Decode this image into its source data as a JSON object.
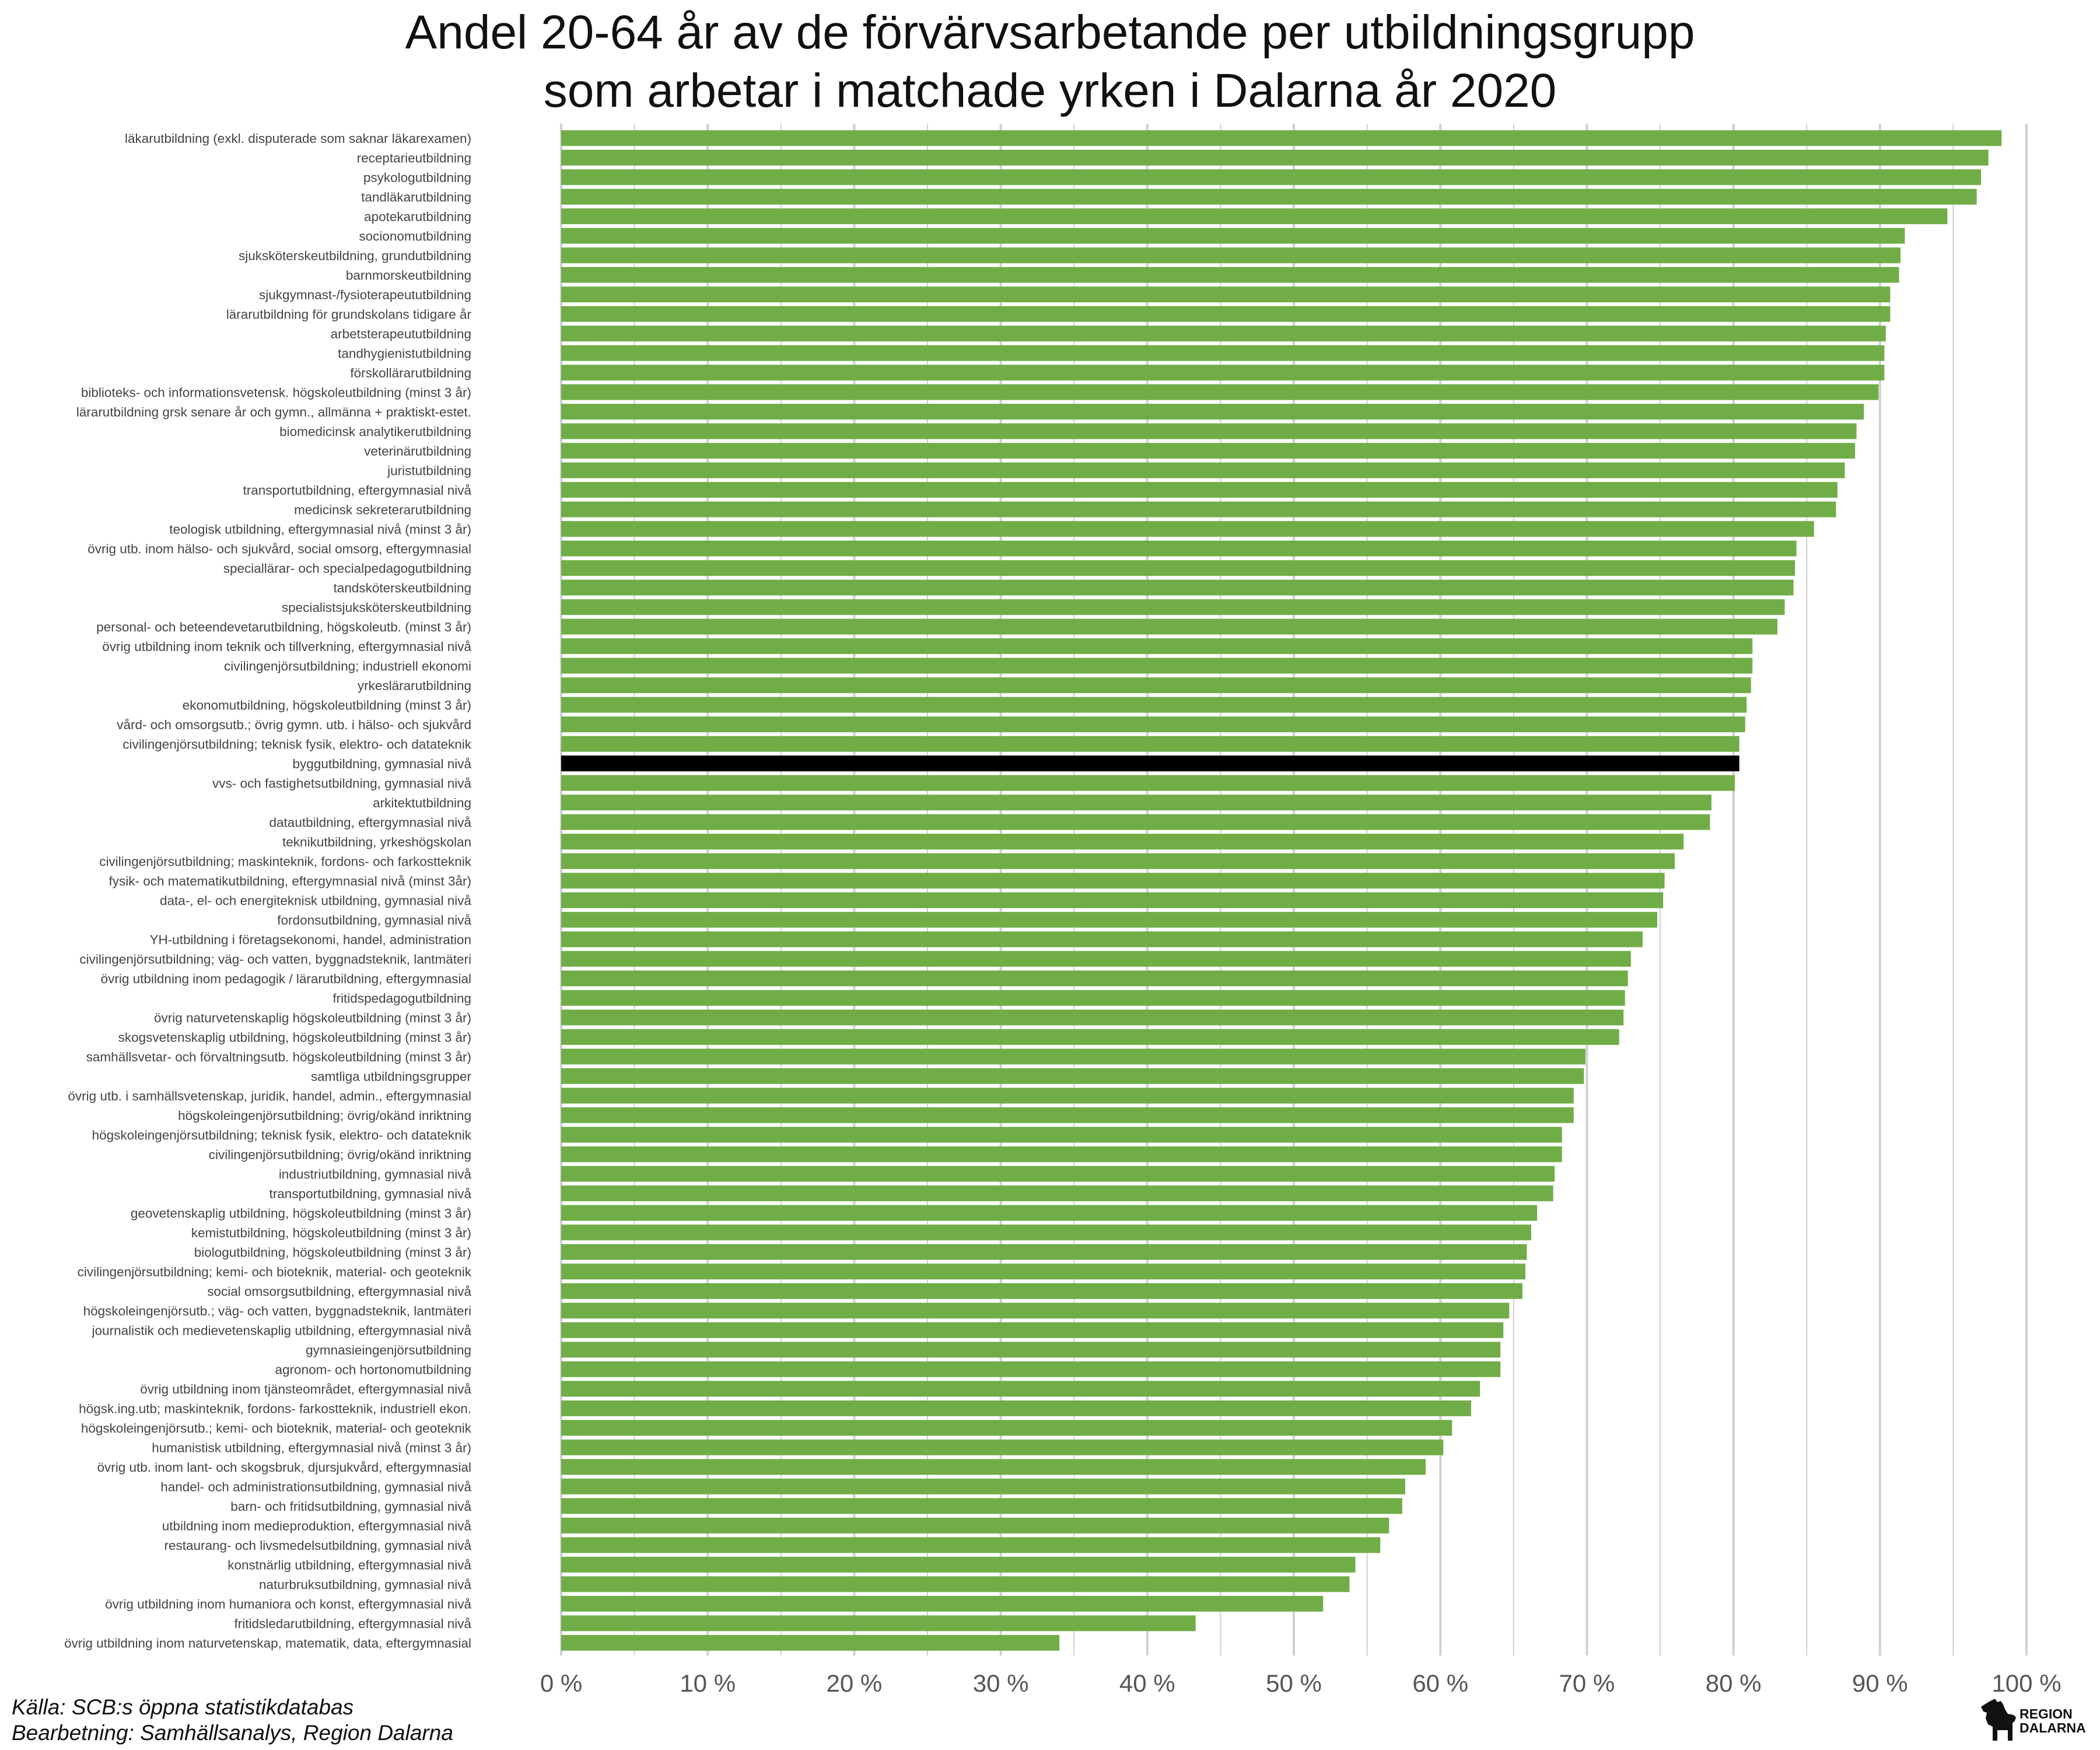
{
  "title": {
    "line1": "Andel 20-64 år av de förvärvsarbetande per utbildningsgrupp",
    "line2": "som arbetar i matchade yrken i Dalarna år 2020"
  },
  "footer": {
    "source": "Källa: SCB:s öppna statistikdatabas",
    "processing": "Bearbetning: Samhällsanalys, Region Dalarna"
  },
  "logo": {
    "line1": "REGION",
    "line2": "DALARNA",
    "icon": "dala-horse-icon"
  },
  "colors": {
    "bar": "#70ad47",
    "highlight": "#000000",
    "grid": "#d0d0d0"
  },
  "chart_data": {
    "type": "bar",
    "orientation": "horizontal",
    "xlim": [
      0,
      100
    ],
    "ticks": [
      "0 %",
      "10 %",
      "20 %",
      "30 %",
      "40 %",
      "50 %",
      "60 %",
      "70 %",
      "80 %",
      "90 %",
      "100 %"
    ],
    "grid": true,
    "highlight": "byggutbildning, gymnasial nivå",
    "categories": [
      "läkarutbildning (exkl. disputerade som saknar läkarexamen)",
      "receptarieutbildning",
      "psykologutbildning",
      "tandläkarutbildning",
      "apotekarutbildning",
      "socionomutbildning",
      "sjuksköterskeutbildning, grundutbildning",
      "barnmorskeutbildning",
      "sjukgymnast-/fysioterapeututbildning",
      "lärarutbildning för grundskolans tidigare år",
      "arbetsterapeututbildning",
      "tandhygienistutbildning",
      "förskollärarutbildning",
      "biblioteks- och informationsvetensk. högskoleutbildning (minst 3 år)",
      "lärarutbildning grsk senare år och gymn., allmänna + praktiskt-estet.",
      "biomedicinsk analytikerutbildning",
      "veterinärutbildning",
      "juristutbildning",
      "transportutbildning, eftergymnasial nivå",
      "medicinsk sekreterarutbildning",
      "teologisk utbildning, eftergymnasial nivå (minst 3 år)",
      "övrig utb. inom hälso- och sjukvård, social omsorg, eftergymnasial",
      "speciallärar- och specialpedagogutbildning",
      "tandsköterskeutbildning",
      "specialistsjuksköterskeutbildning",
      "personal- och beteendevetarutbildning, högskoleutb. (minst 3 år)",
      "övrig utbildning inom teknik och tillverkning, eftergymnasial nivå",
      "civilingenjörsutbildning; industriell ekonomi",
      "yrkeslärarutbildning",
      "ekonomutbildning, högskoleutbildning (minst 3 år)",
      "vård- och omsorgsutb.; övrig gymn. utb. i hälso- och sjukvård",
      "civilingenjörsutbildning; teknisk fysik, elektro- och datateknik",
      "byggutbildning, gymnasial nivå",
      "vvs- och fastighetsutbildning, gymnasial nivå",
      "arkitektutbildning",
      "datautbildning, eftergymnasial nivå",
      "teknikutbildning, yrkeshögskolan",
      "civilingenjörsutbildning; maskinteknik, fordons- och farkostteknik",
      "fysik- och  matematikutbildning, eftergymnasial nivå (minst 3år)",
      "data-, el- och energiteknisk utbildning, gymnasial nivå",
      "fordonsutbildning, gymnasial nivå",
      "YH-utbildning i företagsekonomi, handel, administration",
      "civilingenjörsutbildning; väg- och vatten, byggnadsteknik, lantmäteri",
      "övrig utbildning inom pedagogik / lärarutbildning, eftergymnasial",
      "fritidspedagogutbildning",
      "övrig naturvetenskaplig högskoleutbildning (minst 3 år)",
      "skogsvetenskaplig utbildning, högskoleutbildning (minst 3 år)",
      "samhällsvetar- och förvaltningsutb. högskoleutbildning (minst 3 år)",
      "samtliga utbildningsgrupper",
      "övrig utb. i samhällsvetenskap, juridik, handel, admin., eftergymnasial",
      "högskoleingenjörsutbildning; övrig/okänd inriktning",
      "högskoleingenjörsutbildning; teknisk fysik, elektro- och datateknik",
      "civilingenjörsutbildning; övrig/okänd inriktning",
      "industriutbildning, gymnasial nivå",
      "transportutbildning, gymnasial nivå",
      "geovetenskaplig utbildning, högskoleutbildning (minst 3 år)",
      "kemistutbildning, högskoleutbildning (minst 3 år)",
      "biologutbildning, högskoleutbildning (minst 3 år)",
      "civilingenjörsutbildning; kemi- och bioteknik, material- och geoteknik",
      "social omsorgsutbildning, eftergymnasial nivå",
      "högskoleingenjörsutb.; väg- och vatten, byggnadsteknik, lantmäteri",
      "journalistik och medievetenskaplig utbildning, eftergymnasial nivå",
      "gymnasieingenjörsutbildning",
      "agronom- och hortonomutbildning",
      "övrig utbildning inom tjänsteområdet, eftergymnasial nivå",
      "högsk.ing.utb; maskinteknik, fordons- farkostteknik, industriell ekon.",
      "högskoleingenjörsutb.; kemi- och bioteknik, material- och geoteknik",
      "humanistisk utbildning, eftergymnasial nivå (minst 3 år)",
      "övrig utb. inom lant- och skogsbruk, djursjukvård, eftergymnasial",
      "handel- och administrationsutbildning, gymnasial nivå",
      "barn- och fritidsutbildning, gymnasial nivå",
      "utbildning inom medieproduktion, eftergymnasial nivå",
      "restaurang- och livsmedelsutbildning, gymnasial nivå",
      "konstnärlig utbildning, eftergymnasial nivå",
      "naturbruksutbildning, gymnasial nivå",
      "övrig utbildning inom humaniora och konst, eftergymnasial nivå",
      "fritidsledarutbildning, eftergymnasial nivå",
      "övrig utbildning inom naturvetenskap, matematik, data, eftergymnasial"
    ],
    "values": [
      98.3,
      97.4,
      96.9,
      96.6,
      94.6,
      91.7,
      91.4,
      91.3,
      90.7,
      90.7,
      90.4,
      90.3,
      90.3,
      89.9,
      88.9,
      88.4,
      88.3,
      87.6,
      87.1,
      87.0,
      85.5,
      84.3,
      84.2,
      84.1,
      83.5,
      83.0,
      81.3,
      81.3,
      81.2,
      80.9,
      80.8,
      80.4,
      80.4,
      80.1,
      78.5,
      78.4,
      76.6,
      76.0,
      75.3,
      75.2,
      74.8,
      73.8,
      73.0,
      72.8,
      72.6,
      72.5,
      72.2,
      69.9,
      69.8,
      69.1,
      69.1,
      68.3,
      68.3,
      67.8,
      67.7,
      66.6,
      66.2,
      65.9,
      65.8,
      65.6,
      64.7,
      64.3,
      64.1,
      64.1,
      62.7,
      62.1,
      60.8,
      60.2,
      59.0,
      57.6,
      57.4,
      56.5,
      55.9,
      54.2,
      53.8,
      52.0,
      43.3,
      34.0
    ]
  }
}
